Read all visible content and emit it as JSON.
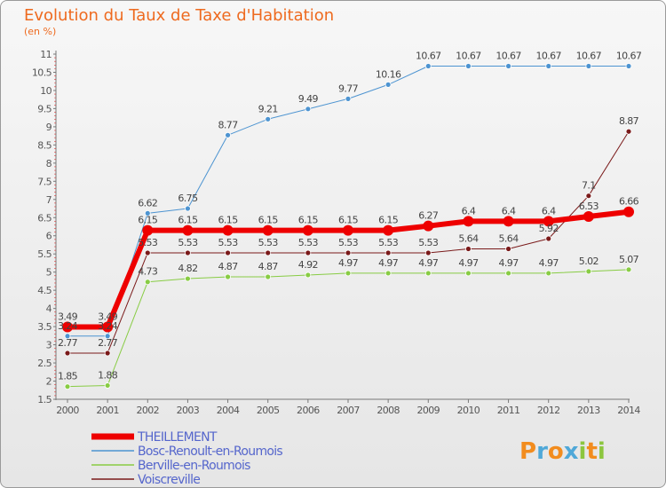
{
  "title": "Evolution du Taux de Taxe d'Habitation",
  "unit_label": "(en %)",
  "brand": {
    "name": "Proxiti",
    "letters": [
      "P",
      "r",
      "o",
      "x",
      "i",
      "t",
      "i"
    ],
    "colors": [
      "#f28c1e",
      "#4fa8d8",
      "#f28c1e",
      "#4fa8d8",
      "#8cc63f",
      "#f28c1e",
      "#8cc63f"
    ]
  },
  "chart_data": {
    "type": "line",
    "x": [
      2000,
      2001,
      2002,
      2003,
      2004,
      2005,
      2006,
      2007,
      2008,
      2009,
      2010,
      2011,
      2012,
      2013,
      2014
    ],
    "ylim": [
      1.5,
      11
    ],
    "yticks": [
      1.5,
      2,
      2.5,
      3,
      3.5,
      4,
      4.5,
      5,
      5.5,
      6,
      6.5,
      7,
      7.5,
      8,
      8.5,
      9,
      9.5,
      10,
      10.5,
      11
    ],
    "ytick_labels": [
      "1.5",
      "2",
      "2.5",
      "3",
      "3.5",
      "4",
      "4.5",
      "5",
      "5.5",
      "6",
      "6.5",
      "7",
      "7.5",
      "8",
      "8.5",
      "9",
      "9.5",
      "10",
      "10.5",
      "11"
    ],
    "grid": false,
    "legend_position": "bottom-left",
    "series": [
      {
        "name": "THEILLEMENT",
        "color": "#ee0000",
        "width": 6,
        "values": [
          3.49,
          3.49,
          6.15,
          6.15,
          6.15,
          6.15,
          6.15,
          6.15,
          6.15,
          6.27,
          6.4,
          6.4,
          6.4,
          6.53,
          6.66
        ],
        "labels": [
          "3.49",
          "3.49",
          "6.15",
          "6.15",
          "6.15",
          "6.15",
          "6.15",
          "6.15",
          "6.15",
          "6.27",
          "6.4",
          "6.4",
          "6.4",
          "6.53",
          "6.66"
        ]
      },
      {
        "name": "Bosc-Renoult-en-Roumois",
        "color": "#4d94d1",
        "width": 1,
        "values": [
          3.24,
          3.24,
          6.62,
          6.75,
          8.77,
          9.21,
          9.49,
          9.77,
          10.16,
          10.67,
          10.67,
          10.67,
          10.67,
          10.67,
          10.67
        ],
        "labels": [
          "3.24",
          "3.24",
          "6.62",
          "6.75",
          "8.77",
          "9.21",
          "9.49",
          "9.77",
          "10.16",
          "10.67",
          "10.67",
          "10.67",
          "10.67",
          "10.67",
          "10.67"
        ]
      },
      {
        "name": "Berville-en-Roumois",
        "color": "#88cc44",
        "width": 1,
        "values": [
          1.85,
          1.88,
          4.73,
          4.82,
          4.87,
          4.87,
          4.92,
          4.97,
          4.97,
          4.97,
          4.97,
          4.97,
          4.97,
          5.02,
          5.07
        ],
        "labels": [
          "1.85",
          "1.88",
          "4.73",
          "4.82",
          "4.87",
          "4.87",
          "4.92",
          "4.97",
          "4.97",
          "4.97",
          "4.97",
          "4.97",
          "4.97",
          "5.02",
          "5.07"
        ]
      },
      {
        "name": "Voiscreville",
        "color": "#7a1a1a",
        "width": 1,
        "values": [
          2.77,
          2.77,
          5.53,
          5.53,
          5.53,
          5.53,
          5.53,
          5.53,
          5.53,
          5.53,
          5.64,
          5.64,
          5.92,
          7.1,
          8.87
        ],
        "labels": [
          "2.77",
          "2.77",
          "5.53",
          "5.53",
          "5.53",
          "5.53",
          "5.53",
          "5.53",
          "5.53",
          "5.53",
          "5.64",
          "5.64",
          "5.92",
          "7.1",
          "8.87"
        ]
      }
    ]
  }
}
